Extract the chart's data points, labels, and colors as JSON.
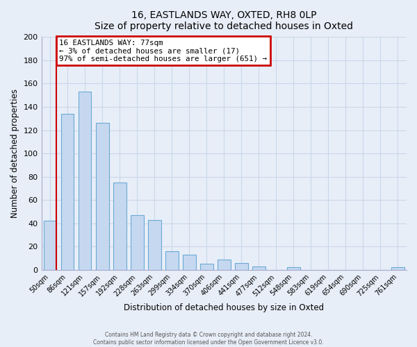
{
  "title": "16, EASTLANDS WAY, OXTED, RH8 0LP",
  "subtitle": "Size of property relative to detached houses in Oxted",
  "xlabel": "Distribution of detached houses by size in Oxted",
  "ylabel": "Number of detached properties",
  "categories": [
    "50sqm",
    "86sqm",
    "121sqm",
    "157sqm",
    "192sqm",
    "228sqm",
    "263sqm",
    "299sqm",
    "334sqm",
    "370sqm",
    "406sqm",
    "441sqm",
    "477sqm",
    "512sqm",
    "548sqm",
    "583sqm",
    "619sqm",
    "654sqm",
    "690sqm",
    "725sqm",
    "761sqm"
  ],
  "values": [
    42,
    134,
    153,
    126,
    75,
    47,
    43,
    16,
    13,
    5,
    9,
    6,
    3,
    0,
    2,
    0,
    0,
    0,
    0,
    0,
    2
  ],
  "bar_color": "#c5d8f0",
  "bar_edge_color": "#6aaad4",
  "annotation_title": "16 EASTLANDS WAY: 77sqm",
  "annotation_line1": "← 3% of detached houses are smaller (17)",
  "annotation_line2": "97% of semi-detached houses are larger (651) →",
  "annotation_box_facecolor": "#ffffff",
  "annotation_box_edgecolor": "#cc0000",
  "property_line_color": "#cc0000",
  "ylim": [
    0,
    200
  ],
  "yticks": [
    0,
    20,
    40,
    60,
    80,
    100,
    120,
    140,
    160,
    180,
    200
  ],
  "grid_color": "#c8d8e8",
  "background_color": "#e8eef8",
  "spine_color": "#aaaacc",
  "footer_line1": "Contains HM Land Registry data © Crown copyright and database right 2024.",
  "footer_line2": "Contains public sector information licensed under the Open Government Licence v3.0."
}
